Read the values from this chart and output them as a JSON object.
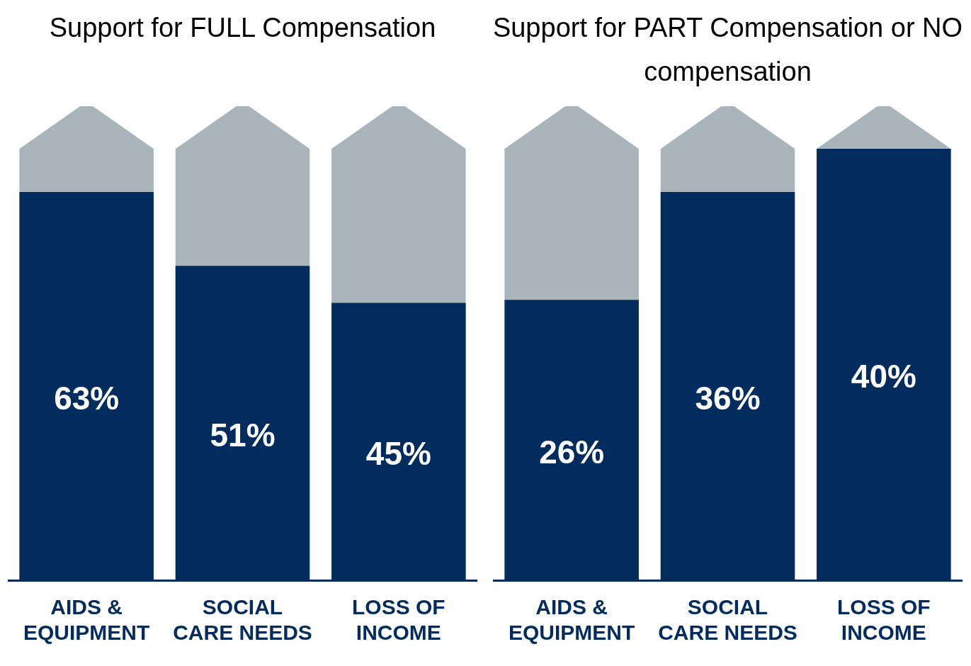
{
  "chart_data": [
    {
      "type": "bar",
      "title": "Support for FULL Compensation",
      "categories": [
        "AIDS & EQUIPMENT",
        "SOCIAL CARE NEEDS",
        "LOSS OF INCOME"
      ],
      "values": [
        63,
        51,
        45
      ],
      "color": "#022c5e",
      "value_labels": [
        "63%",
        "51%",
        "45%"
      ],
      "tick_labels": "x"
    },
    {
      "type": "bar",
      "title": "Support for PART Compensation or NO compensation",
      "categories": [
        "AIDS & EQUIPMENT",
        "SOCIAL CARE NEEDS",
        "LOSS OF INCOME"
      ],
      "values": [
        26,
        36,
        40
      ],
      "color": "#022c5e",
      "value_labels": [
        "26%",
        "36%",
        "40%"
      ],
      "tick_labels": "x"
    }
  ]
}
